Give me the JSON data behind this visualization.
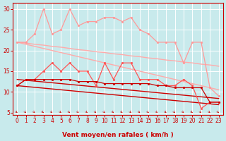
{
  "background_color": "#c8eaec",
  "grid_color": "#b0d0d4",
  "xlabel": "Vent moyen/en rafales ( km/h )",
  "xlim": [
    -0.5,
    23.5
  ],
  "ylim": [
    4.5,
    31.5
  ],
  "yticks": [
    5,
    10,
    15,
    20,
    25,
    30
  ],
  "xticks": [
    0,
    1,
    2,
    3,
    4,
    5,
    6,
    7,
    8,
    9,
    10,
    11,
    12,
    13,
    14,
    15,
    16,
    17,
    18,
    19,
    20,
    21,
    22,
    23
  ],
  "lines": [
    {
      "color": "#ff9999",
      "lw": 0.9,
      "marker": "o",
      "ms": 2.0,
      "y": [
        22,
        22,
        24,
        30,
        24,
        25,
        30,
        26,
        27,
        27,
        28,
        28,
        27,
        28,
        25,
        24,
        22,
        22,
        22,
        17,
        22,
        22,
        11,
        9
      ]
    },
    {
      "color": "#ffaaaa",
      "lw": 1.0,
      "marker": null,
      "ms": 0,
      "y": [
        22.0,
        21.8,
        21.5,
        21.3,
        21.0,
        20.8,
        20.5,
        20.2,
        20.0,
        19.7,
        19.5,
        19.2,
        19.0,
        18.7,
        18.5,
        18.2,
        18.0,
        17.7,
        17.5,
        17.2,
        17.0,
        16.7,
        16.5,
        16.2
      ]
    },
    {
      "color": "#ffaaaa",
      "lw": 1.0,
      "marker": null,
      "ms": 0,
      "y": [
        22.0,
        21.5,
        21.0,
        20.5,
        20.0,
        19.5,
        19.0,
        18.5,
        18.0,
        17.5,
        17.0,
        16.5,
        16.0,
        15.5,
        15.0,
        14.5,
        14.0,
        13.5,
        13.0,
        12.5,
        12.0,
        11.5,
        11.0,
        10.5
      ]
    },
    {
      "color": "#ff5555",
      "lw": 0.9,
      "marker": "o",
      "ms": 2.0,
      "y": [
        11.5,
        13,
        13,
        15,
        17,
        15,
        17,
        15,
        15,
        11.5,
        17,
        13,
        17,
        17,
        13,
        13,
        13,
        11.5,
        11.5,
        13,
        11.5,
        6,
        7.5,
        7.5
      ]
    },
    {
      "color": "#cc0000",
      "lw": 0.9,
      "marker": "o",
      "ms": 2.0,
      "y": [
        11.5,
        13,
        13,
        13,
        13,
        13,
        13,
        12.5,
        12.5,
        12.5,
        12,
        12,
        12,
        12,
        12,
        12,
        11.5,
        11.5,
        11,
        11,
        11,
        11,
        7.5,
        7.5
      ]
    },
    {
      "color": "#cc0000",
      "lw": 1.0,
      "marker": null,
      "ms": 0,
      "y": [
        11.5,
        11.3,
        11.1,
        10.9,
        10.7,
        10.5,
        10.3,
        10.1,
        9.9,
        9.7,
        9.5,
        9.3,
        9.1,
        8.9,
        8.7,
        8.5,
        8.3,
        8.1,
        7.9,
        7.7,
        7.5,
        7.3,
        7.1,
        6.9
      ]
    },
    {
      "color": "#cc0000",
      "lw": 1.0,
      "marker": null,
      "ms": 0,
      "y": [
        13.0,
        12.8,
        12.6,
        12.4,
        12.2,
        12.0,
        11.8,
        11.6,
        11.4,
        11.2,
        11.0,
        10.8,
        10.6,
        10.4,
        10.2,
        10.0,
        9.8,
        9.6,
        9.4,
        9.2,
        9.0,
        8.8,
        8.6,
        8.4
      ]
    }
  ],
  "wind_arrows_color": "#cc0000",
  "tick_fontsize": 5.5,
  "label_fontsize": 6.5,
  "tick_color": "#cc0000",
  "spine_color": "#cc0000"
}
